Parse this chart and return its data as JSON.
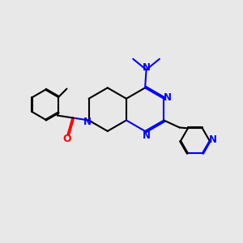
{
  "bg_color": "#e8e8e8",
  "bond_color": "#000000",
  "nitrogen_color": "#0000ff",
  "oxygen_color": "#ff0000",
  "line_width": 1.5,
  "font_size": 8.5,
  "xlim": [
    0,
    10
  ],
  "ylim": [
    0,
    10
  ]
}
